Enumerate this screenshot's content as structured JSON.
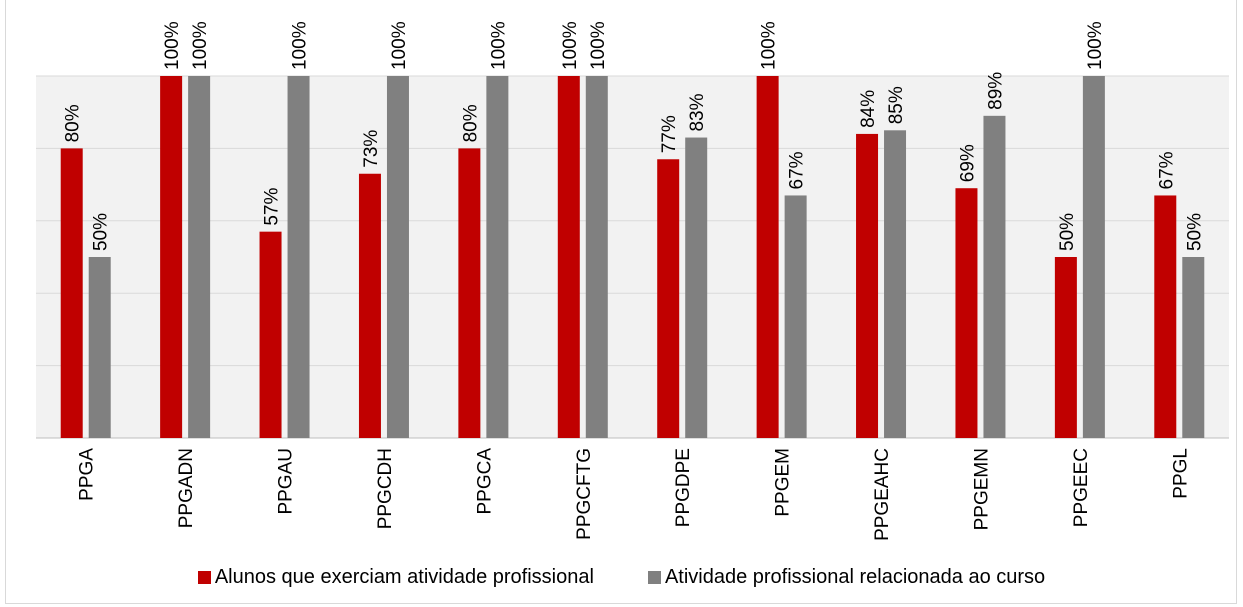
{
  "chart_data": {
    "type": "bar",
    "title": "",
    "xlabel": "",
    "ylabel": "",
    "ylim": [
      0,
      1
    ],
    "categories": [
      "PPGA",
      "PPGADN",
      "PPGAU",
      "PPGCDH",
      "PPGCA",
      "PPGCFTG",
      "PPGDPE",
      "PPGEM",
      "PPGEAHC",
      "PPGEMN",
      "PPGEEC",
      "PPGL"
    ],
    "series": [
      {
        "name": "Alunos que exerciam atividade profissional",
        "color": "#c00000",
        "values": [
          0.8,
          1.0,
          0.57,
          0.73,
          0.8,
          1.0,
          0.77,
          1.0,
          0.84,
          0.69,
          0.5,
          0.67
        ],
        "labels": [
          "80%",
          "100%",
          "57%",
          "73%",
          "80%",
          "100%",
          "77%",
          "100%",
          "84%",
          "69%",
          "50%",
          "67%"
        ]
      },
      {
        "name": "Atividade profissional relacionada ao curso",
        "color": "#808080",
        "values": [
          0.5,
          1.0,
          1.0,
          1.0,
          1.0,
          1.0,
          0.83,
          0.67,
          0.85,
          0.89,
          1.0,
          0.5
        ],
        "labels": [
          "50%",
          "100%",
          "100%",
          "100%",
          "100%",
          "100%",
          "83%",
          "67%",
          "85%",
          "89%",
          "100%",
          "50%"
        ]
      }
    ],
    "grid": true,
    "legend_position": "bottom"
  }
}
